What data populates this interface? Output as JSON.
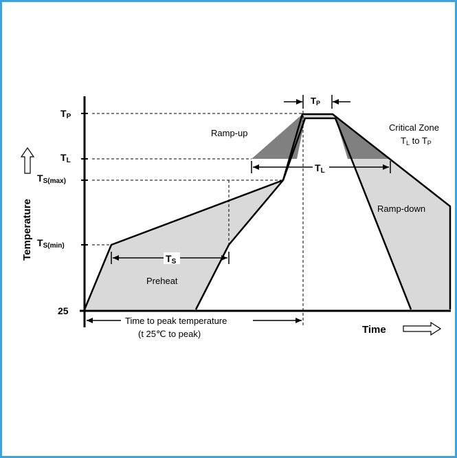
{
  "y_axis": {
    "title": "Temperature",
    "ticks": {
      "tp": {
        "main": "T",
        "sub": "P"
      },
      "tl": {
        "main": "T",
        "sub": "L"
      },
      "tsmax": {
        "main": "T",
        "sub": "S(max)"
      },
      "tsmin": {
        "main": "T",
        "sub": "S(min)"
      },
      "t25": "25"
    }
  },
  "x_axis": {
    "title": "Time"
  },
  "regions": {
    "ramp_up": "Ramp-up",
    "ramp_down": "Ramp-down",
    "preheat": "Preheat",
    "critical_zone": "Critical Zone",
    "critical_zone_range": {
      "a_main": "T",
      "a_sub": "L",
      "mid": " to ",
      "b_main": "T",
      "b_sub": "P"
    }
  },
  "durations": {
    "tp": {
      "main": "T",
      "sub": "P"
    },
    "tl": {
      "main": "T",
      "sub": "L"
    },
    "ts": {
      "main": "T",
      "sub": "S"
    },
    "time_to_peak_line1": "Time to peak temperature",
    "time_to_peak_line2": "(t 25℃  to peak)"
  },
  "colors": {
    "frame": "#3ba4e0",
    "light_fill": "#d9d9d9",
    "dark_fill": "#808080",
    "line": "#000000"
  }
}
